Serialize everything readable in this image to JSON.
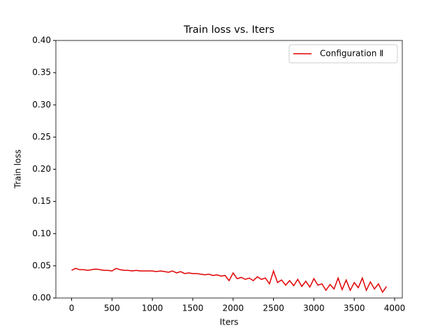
{
  "chart_data": {
    "type": "line",
    "title": "Train loss vs. Iters",
    "x_label": "Iters",
    "y_label": "Train loss",
    "x": [
      0,
      50,
      100,
      150,
      200,
      250,
      300,
      350,
      400,
      450,
      500,
      550,
      600,
      650,
      700,
      750,
      800,
      850,
      900,
      950,
      1000,
      1050,
      1100,
      1150,
      1200,
      1250,
      1300,
      1350,
      1400,
      1450,
      1500,
      1550,
      1600,
      1650,
      1700,
      1750,
      1800,
      1850,
      1900,
      1950,
      2000,
      2050,
      2100,
      2150,
      2200,
      2250,
      2300,
      2350,
      2400,
      2450,
      2500,
      2550,
      2600,
      2650,
      2700,
      2750,
      2800,
      2850,
      2900,
      2950,
      3000,
      3050,
      3100,
      3150,
      3200,
      3250,
      3300,
      3350,
      3400,
      3450,
      3500,
      3550,
      3600,
      3650,
      3700,
      3750,
      3800,
      3850,
      3900
    ],
    "series": [
      {
        "name": "Configuration Ⅱ",
        "color": "#e00000",
        "values": [
          0.043,
          0.046,
          0.044,
          0.044,
          0.043,
          0.044,
          0.045,
          0.044,
          0.043,
          0.043,
          0.042,
          0.046,
          0.044,
          0.043,
          0.043,
          0.042,
          0.043,
          0.042,
          0.042,
          0.042,
          0.042,
          0.041,
          0.042,
          0.041,
          0.04,
          0.042,
          0.039,
          0.041,
          0.038,
          0.039,
          0.038,
          0.038,
          0.037,
          0.036,
          0.037,
          0.035,
          0.036,
          0.034,
          0.035,
          0.027,
          0.039,
          0.03,
          0.032,
          0.029,
          0.031,
          0.027,
          0.033,
          0.029,
          0.031,
          0.022,
          0.042,
          0.024,
          0.028,
          0.02,
          0.027,
          0.019,
          0.029,
          0.018,
          0.026,
          0.017,
          0.03,
          0.02,
          0.022,
          0.012,
          0.021,
          0.014,
          0.031,
          0.013,
          0.028,
          0.012,
          0.024,
          0.016,
          0.031,
          0.012,
          0.025,
          0.014,
          0.022,
          0.009,
          0.018
        ]
      }
    ],
    "xlim": [
      -195,
      4095
    ],
    "xticks": [
      0,
      500,
      1000,
      1500,
      2000,
      2500,
      3000,
      3500,
      4000
    ],
    "ylim": [
      0,
      0.4
    ],
    "yticks": [
      {
        "value": 0,
        "label": "0.00"
      },
      {
        "value": 0.05,
        "label": "0.05"
      },
      {
        "value": 0.1,
        "label": "0.10"
      },
      {
        "value": 0.15,
        "label": "0.15"
      },
      {
        "value": 0.2,
        "label": "0.20"
      },
      {
        "value": 0.25,
        "label": "0.25"
      },
      {
        "value": 0.3,
        "label": "0.30"
      },
      {
        "value": 0.35,
        "label": "0.35"
      },
      {
        "value": 0.4,
        "label": "0.40"
      }
    ],
    "legend": "upper right"
  }
}
